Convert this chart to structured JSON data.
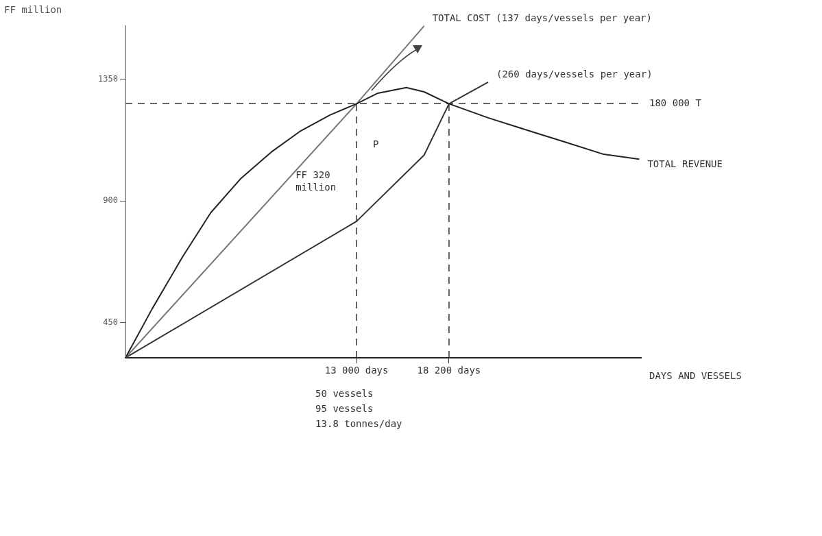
{
  "chart_data": {
    "type": "line",
    "xlabel": "DAYS AND VESSELS",
    "ylabel": "FF million",
    "series": [
      {
        "name": "TOTAL REVENUE",
        "color": "#222222",
        "x": [
          0,
          1500,
          3200,
          4800,
          6500,
          8200,
          9800,
          11500,
          13000,
          14200,
          15800,
          16800,
          18200,
          20400,
          22600,
          24700,
          26900,
          28900
        ],
        "values": [
          320,
          501,
          692,
          857,
          984,
          1081,
          1157,
          1218,
          1260,
          1299,
          1320,
          1304,
          1260,
          1208,
          1162,
          1119,
          1073,
          1055
        ]
      },
      {
        "name": "TOTAL COST (137 days/vessels per year)",
        "color": "#777777",
        "x": [
          0,
          13000,
          16800
        ],
        "values": [
          320,
          1260,
          1548
        ]
      },
      {
        "name": "(260 days/vessels per year)",
        "color": "#333333",
        "x": [
          0,
          13000,
          16800,
          18200,
          20400
        ],
        "values": [
          320,
          825,
          1070,
          1260,
          1340
        ]
      }
    ],
    "xlim": [
      0,
      29000
    ],
    "xticks": [
      {
        "value": 13000,
        "label": "13 000 days"
      },
      {
        "value": 18200,
        "label": "18 200 days"
      }
    ],
    "ylim": [
      320,
      1550
    ],
    "yticks": [
      450,
      900,
      1350
    ],
    "ref_lines": [
      {
        "axis": "y",
        "value": 1260,
        "label": "180 000 T",
        "line_style": "dashed"
      },
      {
        "axis": "x",
        "value": 13000,
        "line_style": "dashed"
      },
      {
        "axis": "x",
        "value": 18200,
        "line_style": "dashed"
      }
    ],
    "annotations": [
      "P",
      "FF 320 million",
      "50 vessels",
      "95 vessels",
      "13.8 tonnes/day"
    ],
    "grid": false,
    "legend": false,
    "marker": "none",
    "line_style": "solid"
  }
}
